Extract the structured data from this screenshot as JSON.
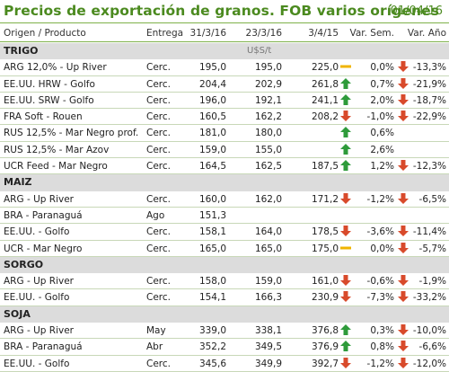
{
  "header": {
    "title": "Precios de exportación de granos. FOB varios orígenes",
    "date": "01/04/16"
  },
  "columns": [
    "Origen / Producto",
    "Entrega",
    "31/3/16",
    "23/3/16",
    "3/4/15",
    "Var. Sem.",
    "Var. Año"
  ],
  "unit": "U$S/t",
  "colors": {
    "accent": "#4b8a1f",
    "up": "#2e9b3a",
    "down": "#d84a2b",
    "flat": "#f0b400",
    "section_bg": "#dcdcdc"
  },
  "sections": [
    {
      "name": "TRIGO",
      "show_unit": true,
      "rows": [
        {
          "name": "ARG 12,0% - Up River",
          "entrega": "Cerc.",
          "v1": "195,0",
          "v2": "195,0",
          "v3": "225,0",
          "ic3": "flat",
          "vs": "0,0%",
          "ic4": "down",
          "va": "-13,3%"
        },
        {
          "name": "EE.UU. HRW - Golfo",
          "entrega": "Cerc.",
          "v1": "204,4",
          "v2": "202,9",
          "v3": "261,8",
          "ic3": "up",
          "vs": "0,7%",
          "ic4": "down",
          "va": "-21,9%"
        },
        {
          "name": "EE.UU. SRW - Golfo",
          "entrega": "Cerc.",
          "v1": "196,0",
          "v2": "192,1",
          "v3": "241,1",
          "ic3": "up",
          "vs": "2,0%",
          "ic4": "down",
          "va": "-18,7%"
        },
        {
          "name": "FRA Soft - Rouen",
          "entrega": "Cerc.",
          "v1": "160,5",
          "v2": "162,2",
          "v3": "208,2",
          "ic3": "down",
          "vs": "-1,0%",
          "ic4": "down",
          "va": "-22,9%"
        },
        {
          "name": "RUS 12,5% - Mar Negro prof.",
          "entrega": "Cerc.",
          "v1": "181,0",
          "v2": "180,0",
          "v3": "",
          "ic3": "up",
          "vs": "0,6%",
          "ic4": "",
          "va": ""
        },
        {
          "name": "RUS 12,5% - Mar Azov",
          "entrega": "Cerc.",
          "v1": "159,0",
          "v2": "155,0",
          "v3": "",
          "ic3": "up",
          "vs": "2,6%",
          "ic4": "",
          "va": ""
        },
        {
          "name": "UCR Feed - Mar Negro",
          "entrega": "Cerc.",
          "v1": "164,5",
          "v2": "162,5",
          "v3": "187,5",
          "ic3": "up",
          "vs": "1,2%",
          "ic4": "down",
          "va": "-12,3%"
        }
      ]
    },
    {
      "name": "MAIZ",
      "show_unit": false,
      "rows": [
        {
          "name": "ARG - Up River",
          "entrega": "Cerc.",
          "v1": "160,0",
          "v2": "162,0",
          "v3": "171,2",
          "ic3": "down",
          "vs": "-1,2%",
          "ic4": "down",
          "va": "-6,5%"
        },
        {
          "name": "BRA - Paranaguá",
          "entrega": "Ago",
          "v1": "151,3",
          "v2": "",
          "v3": "",
          "ic3": "",
          "vs": "",
          "ic4": "",
          "va": ""
        },
        {
          "name": "EE.UU. - Golfo",
          "entrega": "Cerc.",
          "v1": "158,1",
          "v2": "164,0",
          "v3": "178,5",
          "ic3": "down",
          "vs": "-3,6%",
          "ic4": "down",
          "va": "-11,4%"
        },
        {
          "name": "UCR - Mar Negro",
          "entrega": "Cerc.",
          "v1": "165,0",
          "v2": "165,0",
          "v3": "175,0",
          "ic3": "flat",
          "vs": "0,0%",
          "ic4": "down",
          "va": "-5,7%"
        }
      ]
    },
    {
      "name": "SORGO",
      "show_unit": false,
      "rows": [
        {
          "name": "ARG - Up River",
          "entrega": "Cerc.",
          "v1": "158,0",
          "v2": "159,0",
          "v3": "161,0",
          "ic3": "down",
          "vs": "-0,6%",
          "ic4": "down",
          "va": "-1,9%"
        },
        {
          "name": "EE.UU. - Golfo",
          "entrega": "Cerc.",
          "v1": "154,1",
          "v2": "166,3",
          "v3": "230,9",
          "ic3": "down",
          "vs": "-7,3%",
          "ic4": "down",
          "va": "-33,2%"
        }
      ]
    },
    {
      "name": "SOJA",
      "show_unit": false,
      "rows": [
        {
          "name": "ARG - Up River",
          "entrega": "May",
          "v1": "339,0",
          "v2": "338,1",
          "v3": "376,8",
          "ic3": "up",
          "vs": "0,3%",
          "ic4": "down",
          "va": "-10,0%"
        },
        {
          "name": "BRA - Paranaguá",
          "entrega": "Abr",
          "v1": "352,2",
          "v2": "349,5",
          "v3": "376,9",
          "ic3": "up",
          "vs": "0,8%",
          "ic4": "down",
          "va": "-6,6%"
        },
        {
          "name": "EE.UU. - Golfo",
          "entrega": "Cerc.",
          "v1": "345,6",
          "v2": "349,9",
          "v3": "392,7",
          "ic3": "down",
          "vs": "-1,2%",
          "ic4": "down",
          "va": "-12,0%"
        }
      ]
    }
  ]
}
